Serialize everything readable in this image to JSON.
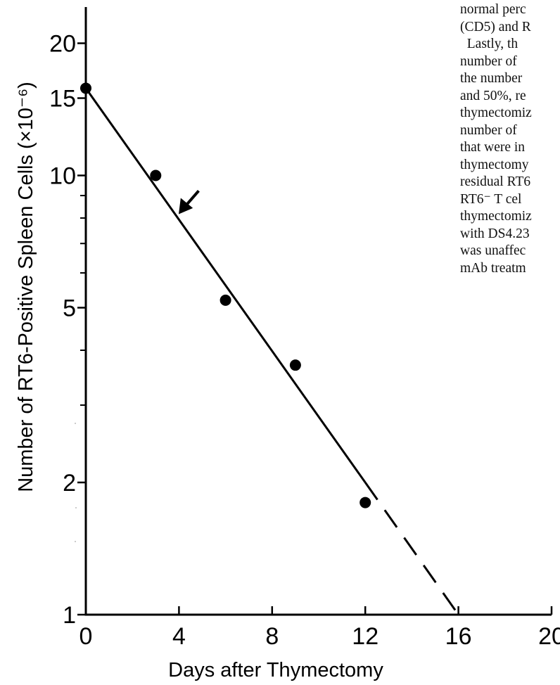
{
  "chart_data": {
    "type": "scatter",
    "xlabel": "Days after Thymectomy",
    "ylabel": "Number of RT6-Positive Spleen Cells (×10⁻⁶)",
    "y_scale": "log",
    "xlim": [
      0,
      20
    ],
    "ylim": [
      1,
      20
    ],
    "x_ticks": [
      0,
      4,
      8,
      12,
      16,
      20
    ],
    "x_tick_labels": [
      "0",
      "4",
      "8",
      "12",
      "16",
      "20"
    ],
    "y_ticks": [
      1,
      2,
      5,
      10,
      15,
      20
    ],
    "y_tick_labels": [
      "1",
      "2",
      "5",
      "10",
      "15",
      "20"
    ],
    "y_minor_ticks": [
      3,
      4,
      6,
      7,
      8,
      9
    ],
    "grid": false,
    "series": [
      {
        "x": [
          0,
          3,
          6,
          9,
          12
        ],
        "y": [
          15.8,
          10.0,
          5.2,
          3.7,
          1.8
        ],
        "marker": "filled-circle"
      }
    ],
    "fit_line": {
      "style": "solid",
      "points": [
        [
          0,
          15.8
        ],
        [
          12,
          2.0
        ]
      ]
    },
    "fit_extrapolation": {
      "style": "dashed",
      "points": [
        [
          12,
          2.0
        ],
        [
          16,
          1.0
        ]
      ]
    },
    "annotations": [
      {
        "type": "arrow",
        "target": [
          4,
          8.2
        ]
      }
    ]
  },
  "body_text": {
    "lines": [
      "normal perc",
      "(CD5) and R",
      "  Lastly, th",
      "number of ",
      "the number",
      "and 50%, re",
      "thymectomiz",
      "number of ",
      "that were in",
      "thymectomy",
      "residual RT6",
      "RT6⁻ T cel",
      "thymectomiz",
      "with DS4.23",
      "was unaffec",
      "mAb treatm"
    ]
  }
}
